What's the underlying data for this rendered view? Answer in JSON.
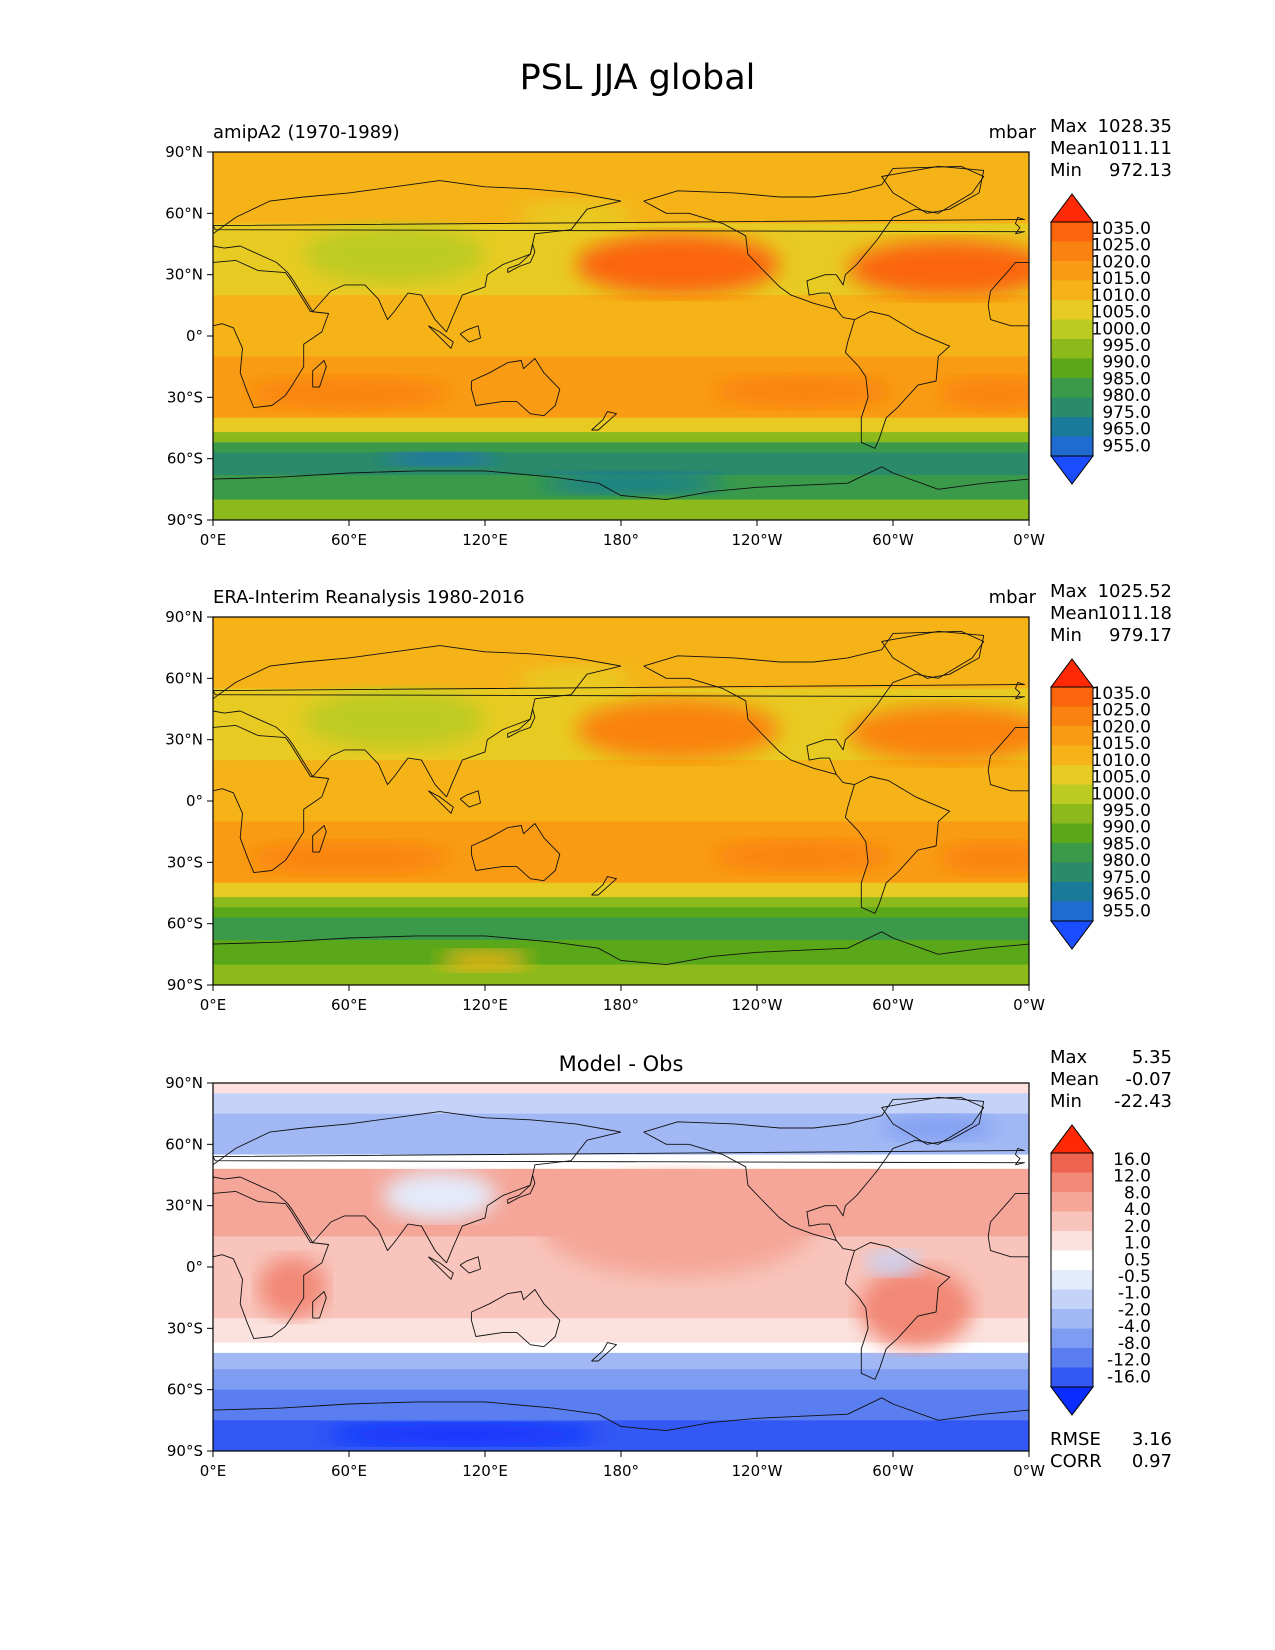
{
  "figure": {
    "title": "PSL JJA global"
  },
  "colors": {
    "abs_levels": [
      "#1a4dff",
      "#1f6bd0",
      "#197a9a",
      "#2a8a6a",
      "#3a9a4a",
      "#5aa81a",
      "#8cba1c",
      "#bccb22",
      "#e8cb22",
      "#f5b318",
      "#f99c14",
      "#fa8210",
      "#fb650c",
      "#ff2a05"
    ],
    "diff_levels": [
      "#0a2cff",
      "#3358f5",
      "#5a7ef0",
      "#7e9cf2",
      "#a2b8f5",
      "#c6d3f8",
      "#e4ebfb",
      "#ffffff",
      "#fbe2de",
      "#f8c4bb",
      "#f5a698",
      "#f28876",
      "#ee6350",
      "#ff2a05"
    ]
  },
  "chart_data": [
    {
      "type": "contourf-map",
      "left_title": "amipA2 (1970-1989)",
      "right_title": "mbar",
      "stats": {
        "max_label": "Max",
        "max": "1028.35",
        "mean_label": "Mean",
        "mean": "1011.11",
        "min_label": "Min",
        "min": "972.13"
      },
      "x_ticks": [
        "0°E",
        "60°E",
        "120°E",
        "180°",
        "120°W",
        "60°W",
        "0°W"
      ],
      "y_ticks": [
        "90°N",
        "60°N",
        "30°N",
        "0°",
        "30°S",
        "60°S",
        "90°S"
      ],
      "colorbar_ticks": [
        "1035.0",
        "1025.0",
        "1020.0",
        "1015.0",
        "1010.0",
        "1005.0",
        "1000.0",
        "995.0",
        "990.0",
        "985.0",
        "980.0",
        "975.0",
        "965.0",
        "955.0"
      ],
      "xlim": [
        0,
        360
      ],
      "ylim": [
        -90,
        90
      ]
    },
    {
      "type": "contourf-map",
      "left_title": "ERA-Interim Reanalysis 1980-2016",
      "right_title": "mbar",
      "stats": {
        "max_label": "Max",
        "max": "1025.52",
        "mean_label": "Mean",
        "mean": "1011.18",
        "min_label": "Min",
        "min": "979.17"
      },
      "x_ticks": [
        "0°E",
        "60°E",
        "120°E",
        "180°",
        "120°W",
        "60°W",
        "0°W"
      ],
      "y_ticks": [
        "90°N",
        "60°N",
        "30°N",
        "0°",
        "30°S",
        "60°S",
        "90°S"
      ],
      "colorbar_ticks": [
        "1035.0",
        "1025.0",
        "1020.0",
        "1015.0",
        "1010.0",
        "1005.0",
        "1000.0",
        "995.0",
        "990.0",
        "985.0",
        "980.0",
        "975.0",
        "965.0",
        "955.0"
      ],
      "xlim": [
        0,
        360
      ],
      "ylim": [
        -90,
        90
      ]
    },
    {
      "type": "contourf-map",
      "center_title": "Model - Obs",
      "stats": {
        "max_label": "Max",
        "max": "5.35",
        "mean_label": "Mean",
        "mean": "-0.07",
        "min_label": "Min",
        "min": "-22.43"
      },
      "metrics": {
        "rmse_label": "RMSE",
        "rmse": "3.16",
        "corr_label": "CORR",
        "corr": "0.97"
      },
      "x_ticks": [
        "0°E",
        "60°E",
        "120°E",
        "180°",
        "120°W",
        "60°W",
        "0°W"
      ],
      "y_ticks": [
        "90°N",
        "60°N",
        "30°N",
        "0°",
        "30°S",
        "60°S",
        "90°S"
      ],
      "colorbar_ticks": [
        "16.0",
        "12.0",
        "8.0",
        "4.0",
        "2.0",
        "1.0",
        "0.5",
        "-0.5",
        "-1.0",
        "-2.0",
        "-4.0",
        "-8.0",
        "-12.0",
        "-16.0"
      ],
      "xlim": [
        0,
        360
      ],
      "ylim": [
        -90,
        90
      ]
    }
  ]
}
